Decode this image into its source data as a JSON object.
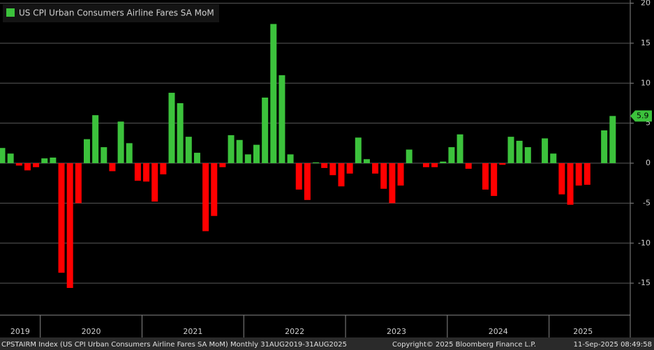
{
  "chart_data": {
    "type": "bar",
    "title": "US CPI Urban Consumers Airline Fares SA MoM",
    "categories": [
      null,
      null,
      null,
      null,
      null,
      null,
      null,
      null,
      null,
      null,
      null,
      null,
      null,
      null,
      null,
      null,
      null,
      null,
      null,
      null,
      null,
      null,
      null,
      null,
      null,
      null,
      null,
      null,
      null,
      null,
      null,
      null,
      null,
      null,
      null,
      null,
      null,
      null,
      null,
      null,
      null,
      null,
      null,
      null,
      null,
      null,
      null,
      null,
      null,
      null,
      null,
      null,
      null,
      null,
      null,
      null,
      null,
      null,
      null,
      null,
      null,
      null,
      null,
      null,
      null,
      null,
      null,
      null,
      null,
      null,
      null,
      null,
      null
    ],
    "values": [
      1.9,
      1.2,
      -0.3,
      -0.9,
      -0.5,
      0.6,
      0.7,
      -13.7,
      -15.6,
      -5,
      3,
      6,
      2,
      -1,
      5.2,
      2.5,
      -2.2,
      -2.3,
      -4.8,
      -1.4,
      8.8,
      7.5,
      3.3,
      1.3,
      -8.5,
      -6.6,
      -0.5,
      3.5,
      2.9,
      1.1,
      2.3,
      8.2,
      17.4,
      11,
      1.1,
      -3.3,
      -4.6,
      0.1,
      -0.6,
      -1.5,
      -2.9,
      -1.3,
      3.2,
      0.5,
      -1.3,
      -3.2,
      -5,
      -2.8,
      1.7,
      0,
      -0.5,
      -0.5,
      0.2,
      2,
      3.6,
      -0.7,
      0,
      -3.3,
      -4.1,
      -0.2,
      3.3,
      2.8,
      2,
      0,
      3.1,
      1.2,
      -3.9,
      -5.2,
      -2.8,
      -2.7,
      0,
      4.1,
      5.9
    ],
    "color_positive": "#3cc23c",
    "color_negative": "#ff0000",
    "x_groups": [
      {
        "label": "2019",
        "count": 5
      },
      {
        "label": "2020",
        "count": 12
      },
      {
        "label": "2021",
        "count": 12
      },
      {
        "label": "2022",
        "count": 12
      },
      {
        "label": "2023",
        "count": 12
      },
      {
        "label": "2024",
        "count": 12
      },
      {
        "label": "2025",
        "count": 8
      }
    ],
    "ylim": [
      -19,
      20.4
    ],
    "yticks": [
      -15,
      -10,
      -5,
      0,
      5,
      10,
      15,
      20
    ],
    "grid": true,
    "footer": {
      "left": "CPSTAIRM Index (US CPI Urban Consumers Airline Fares SA MoM)  Monthly 31AUG2019-31AUG2025",
      "center": "Copyright© 2025 Bloomberg Finance L.P.",
      "right": "11-Sep-2025 08:49:58"
    }
  }
}
